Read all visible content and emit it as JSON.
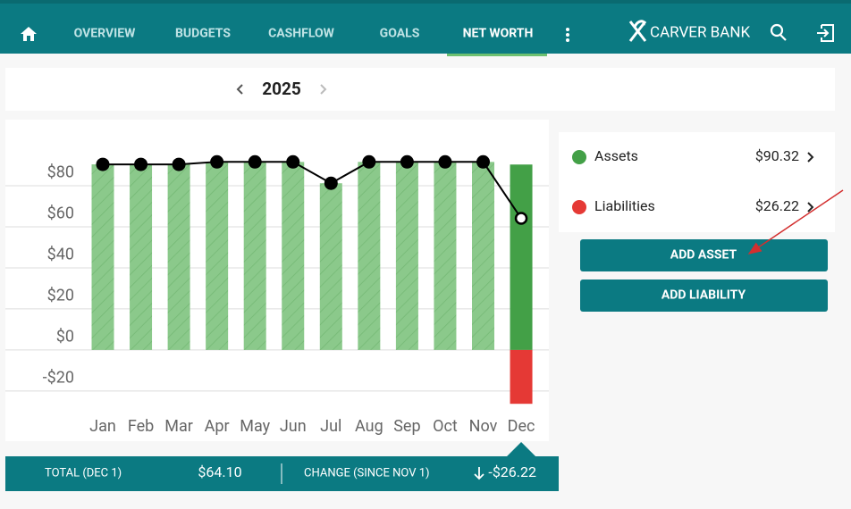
{
  "nav": {
    "tabs": [
      "OVERVIEW",
      "BUDGETS",
      "CASHFLOW",
      "GOALS",
      "NET WORTH"
    ],
    "active": 4,
    "brand": "CARVER BANK"
  },
  "period": {
    "year": "2025"
  },
  "chart_data": {
    "type": "bar",
    "categories": [
      "Jan",
      "Feb",
      "Mar",
      "Apr",
      "May",
      "Jun",
      "Jul",
      "Aug",
      "Sep",
      "Oct",
      "Nov",
      "Dec"
    ],
    "series": [
      {
        "name": "Assets",
        "color": "#43a047",
        "values": [
          90.4,
          90.4,
          90.4,
          91.6,
          91.6,
          91.6,
          81.2,
          91.6,
          91.6,
          91.6,
          91.6,
          90.32
        ]
      },
      {
        "name": "Liabilities",
        "color": "#e53935",
        "values": [
          null,
          null,
          null,
          null,
          null,
          null,
          null,
          null,
          null,
          null,
          null,
          -26.22
        ]
      },
      {
        "type": "line",
        "color": "#000000",
        "values": [
          90.4,
          90.4,
          90.4,
          91.6,
          91.6,
          91.6,
          81.2,
          91.6,
          91.6,
          91.6,
          91.6,
          64.1
        ]
      }
    ],
    "ylim": [
      -27,
      105
    ],
    "yticks": [
      {
        "value": -20,
        "label": "-$20"
      },
      {
        "value": 0,
        "label": "$0"
      },
      {
        "value": 20,
        "label": "$20"
      },
      {
        "value": 40,
        "label": "$40"
      },
      {
        "value": 60,
        "label": "$60"
      },
      {
        "value": 80,
        "label": "$80"
      }
    ],
    "grid": true
  },
  "panel": {
    "values": [
      "$90.32",
      "$26.22"
    ]
  },
  "buttons": [
    "ADD ASSET",
    "ADD LIABILITY"
  ],
  "footer": {
    "total_label": "TOTAL (DEC 1)",
    "total": "$64.10",
    "change_label": "CHANGE (SINCE NOV 1)",
    "change": "-$26.22"
  }
}
